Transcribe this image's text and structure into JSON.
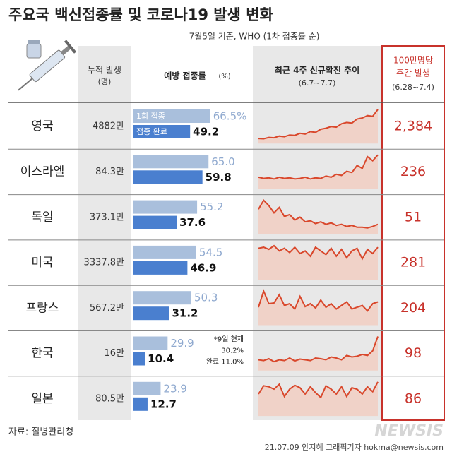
{
  "title": "주요국 백신접종률 및 코로나19 발생 변화",
  "subtitle": "7월5일 기준, WHO (1차 접종률 순)",
  "header": {
    "cases": "누적 발생",
    "cases_unit": "(명)",
    "vaccination": "예방 접종률",
    "vaccination_unit": "(%)",
    "trend": "최근 4주 신규확진 추이",
    "trend_period": "(6.7~7.7)",
    "weekly_1": "100만명당",
    "weekly_2": "주간 발생",
    "weekly_period": "(6.28~7.4)"
  },
  "legend": {
    "first": "1회 접종",
    "full": "접종 완료"
  },
  "rows": [
    {
      "country": "영국",
      "cases": "4882만",
      "first_dose": 66.5,
      "first_label": "66.5%",
      "full_dose": 49.2,
      "full_label": "49.2",
      "weekly": "2,384",
      "trend": [
        15,
        14,
        18,
        17,
        22,
        20,
        25,
        24,
        30,
        28,
        35,
        33,
        42,
        45,
        50,
        48,
        58,
        62,
        60,
        72,
        75,
        82,
        80,
        100
      ]
    },
    {
      "country": "이스라엘",
      "cases": "84.3만",
      "first_dose": 65.0,
      "first_label": "65.0",
      "full_dose": 59.8,
      "full_label": "59.8",
      "weekly": "236",
      "trend": [
        20,
        18,
        19,
        17,
        20,
        18,
        19,
        17,
        18,
        20,
        17,
        19,
        18,
        22,
        20,
        25,
        23,
        30,
        28,
        40,
        35,
        55,
        48,
        58
      ]
    },
    {
      "country": "독일",
      "cases": "373.1만",
      "first_dose": 55.2,
      "first_label": "55.2",
      "full_dose": 37.6,
      "full_label": "37.6",
      "weekly": "51",
      "trend": [
        70,
        95,
        80,
        60,
        75,
        50,
        55,
        40,
        48,
        35,
        38,
        30,
        35,
        28,
        32,
        25,
        28,
        22,
        25,
        20,
        20,
        18,
        22,
        28
      ]
    },
    {
      "country": "미국",
      "cases": "3337.8만",
      "first_dose": 54.5,
      "first_label": "54.5",
      "full_dose": 46.9,
      "full_label": "46.9",
      "weekly": "281",
      "trend": [
        60,
        62,
        58,
        65,
        55,
        60,
        52,
        62,
        50,
        55,
        45,
        62,
        55,
        48,
        60,
        45,
        58,
        42,
        55,
        60,
        40,
        58,
        50,
        62
      ]
    },
    {
      "country": "프랑스",
      "cases": "567.2만",
      "first_dose": 50.3,
      "first_label": "50.3",
      "full_dose": 31.2,
      "full_label": "31.2",
      "weekly": "204",
      "trend": [
        50,
        95,
        60,
        62,
        85,
        55,
        60,
        45,
        80,
        52,
        60,
        48,
        70,
        50,
        60,
        45,
        55,
        65,
        45,
        50,
        55,
        40,
        60,
        65
      ]
    },
    {
      "country": "한국",
      "cases": "16만",
      "first_dose": 29.9,
      "first_label": "29.9",
      "full_dose": 10.4,
      "full_label": "10.4",
      "weekly": "98",
      "trend": [
        30,
        28,
        33,
        25,
        30,
        28,
        35,
        27,
        32,
        30,
        28,
        35,
        33,
        30,
        38,
        35,
        30,
        42,
        38,
        40,
        45,
        42,
        55,
        95
      ]
    },
    {
      "country": "일본",
      "cases": "80.5만",
      "first_dose": 23.9,
      "first_label": "23.9",
      "full_dose": 12.7,
      "full_label": "12.7",
      "weekly": "86",
      "trend": [
        45,
        62,
        60,
        55,
        65,
        40,
        55,
        63,
        58,
        45,
        60,
        48,
        38,
        62,
        55,
        45,
        60,
        40,
        58,
        55,
        45,
        60,
        50,
        70
      ]
    }
  ],
  "note": {
    "text": "*9일 현재",
    "first": "30.2%",
    "full": "완료 11.0%"
  },
  "source": "자료: 질병관리청",
  "credit": "21.07.09 안지혜 그래픽기자 hokma@newsis.com",
  "watermark": "NEWSIS"
}
